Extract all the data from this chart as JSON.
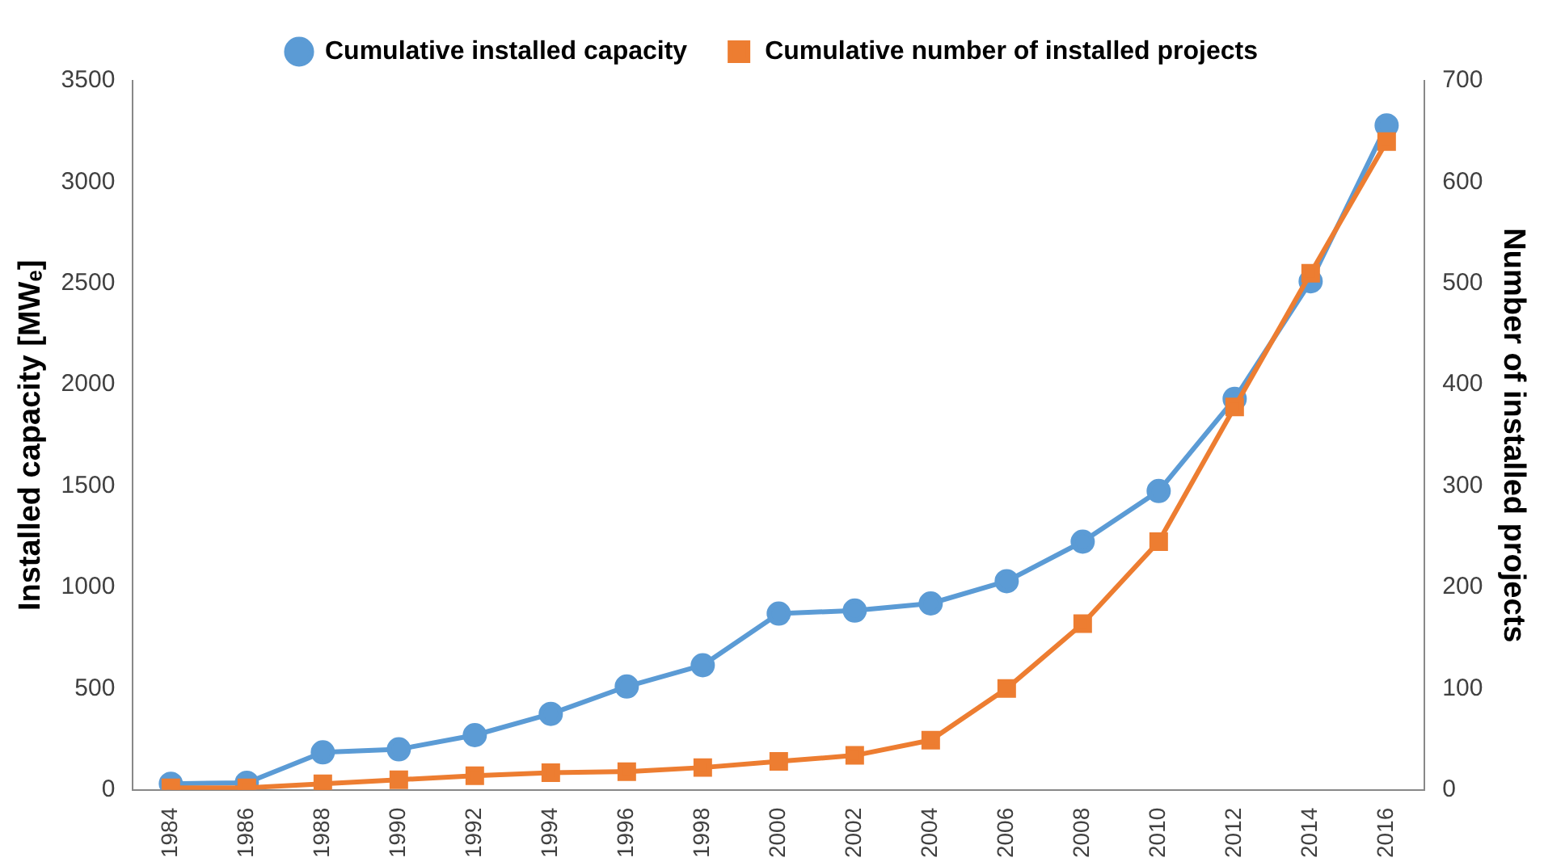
{
  "chart_data": {
    "type": "line",
    "ylabel": "Installed capacity [MWₑ]",
    "y2label": "Number of installed projects",
    "categories": [
      "1984",
      "1986",
      "1988",
      "1990",
      "1992",
      "1994",
      "1996",
      "1998",
      "2000",
      "2002",
      "2004",
      "2006",
      "2008",
      "2010",
      "2012",
      "2014",
      "2016"
    ],
    "series": [
      {
        "name": "Cumulative installed capacity",
        "color": "#5b9bd5",
        "marker": "circle",
        "values": [
          30,
          35,
          185,
          200,
          270,
          375,
          510,
          615,
          870,
          885,
          920,
          1030,
          1225,
          1475,
          1930,
          2510,
          3280
        ]
      },
      {
        "name": "Cumulative number of installed projects",
        "color": "#ed7d31",
        "marker": "square",
        "axis": "y2",
        "values": [
          2,
          2,
          6,
          10,
          14,
          17,
          18,
          22,
          28,
          34,
          49,
          100,
          164,
          245,
          378,
          510,
          640
        ]
      }
    ],
    "ylim": [
      0,
      3500
    ],
    "yticks": [
      0,
      500,
      1000,
      1500,
      2000,
      2500,
      3000,
      3500
    ],
    "y2lim": [
      0,
      700
    ],
    "y2ticks": [
      0,
      100,
      200,
      300,
      400,
      500,
      600,
      700
    ],
    "grid": false,
    "legend": "top"
  }
}
